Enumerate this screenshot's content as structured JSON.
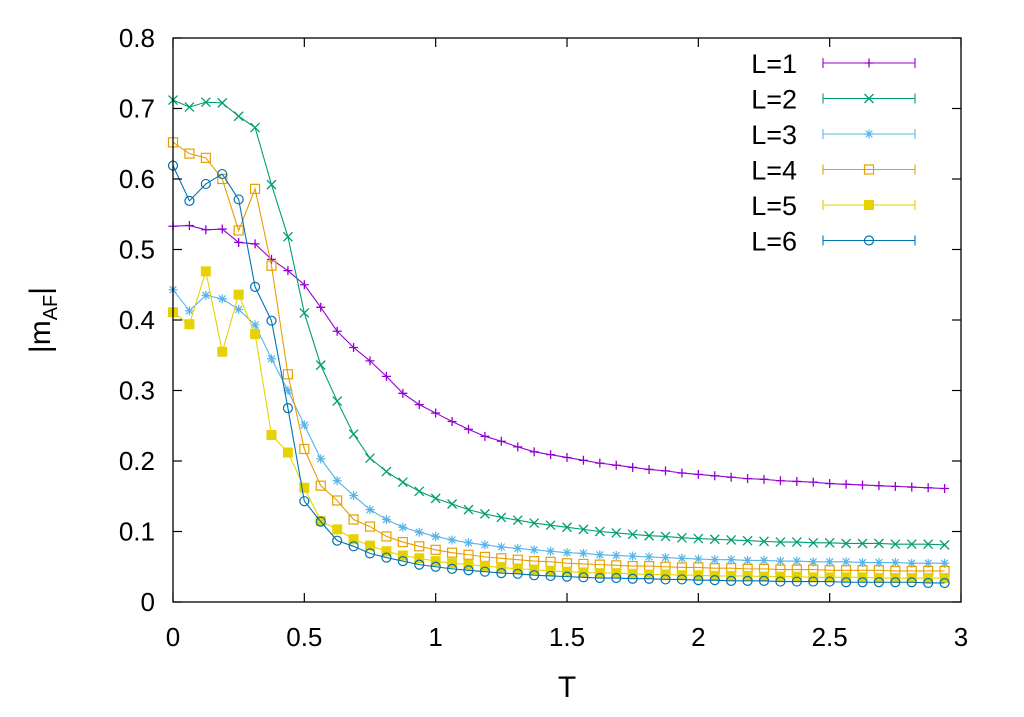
{
  "chart_data": {
    "type": "line",
    "xlabel": "T",
    "ylabel": {
      "main": "|m",
      "sub": "AF",
      "end": "|"
    },
    "xlim": [
      0,
      3
    ],
    "ylim": [
      0,
      0.8
    ],
    "xticks": [
      0,
      0.5,
      1,
      1.5,
      2,
      2.5,
      3
    ],
    "xtick_labels": [
      "0",
      "0.5",
      "1",
      "1.5",
      "2",
      "2.5",
      "3"
    ],
    "yticks": [
      0,
      0.1,
      0.2,
      0.3,
      0.4,
      0.5,
      0.6,
      0.7,
      0.8
    ],
    "ytick_labels": [
      "0",
      "0.1",
      "0.2",
      "0.3",
      "0.4",
      "0.5",
      "0.6",
      "0.7",
      "0.8"
    ],
    "grid": false,
    "legend_position": "top-right",
    "x_start": 0.0,
    "x_step": 0.0625,
    "series": [
      {
        "name": "L=1",
        "color": "#9400d3",
        "marker": "plus",
        "values": [
          0.533,
          0.534,
          0.528,
          0.529,
          0.51,
          0.508,
          0.486,
          0.47,
          0.45,
          0.418,
          0.384,
          0.361,
          0.342,
          0.32,
          0.296,
          0.28,
          0.268,
          0.256,
          0.245,
          0.235,
          0.228,
          0.22,
          0.213,
          0.209,
          0.205,
          0.201,
          0.197,
          0.194,
          0.191,
          0.188,
          0.186,
          0.183,
          0.181,
          0.179,
          0.177,
          0.175,
          0.174,
          0.172,
          0.171,
          0.17,
          0.168,
          0.167,
          0.166,
          0.165,
          0.164,
          0.163,
          0.162,
          0.161
        ]
      },
      {
        "name": "L=2",
        "color": "#009e73",
        "marker": "cross",
        "values": [
          0.712,
          0.702,
          0.709,
          0.708,
          0.689,
          0.673,
          0.592,
          0.518,
          0.41,
          0.336,
          0.285,
          0.238,
          0.204,
          0.185,
          0.17,
          0.157,
          0.147,
          0.139,
          0.131,
          0.125,
          0.12,
          0.116,
          0.112,
          0.109,
          0.106,
          0.103,
          0.1,
          0.098,
          0.096,
          0.094,
          0.093,
          0.091,
          0.09,
          0.089,
          0.088,
          0.087,
          0.086,
          0.085,
          0.085,
          0.084,
          0.084,
          0.083,
          0.083,
          0.083,
          0.082,
          0.082,
          0.082,
          0.081
        ]
      },
      {
        "name": "L=3",
        "color": "#56b4e9",
        "marker": "star",
        "values": [
          0.443,
          0.413,
          0.435,
          0.43,
          0.415,
          0.393,
          0.345,
          0.3,
          0.251,
          0.203,
          0.172,
          0.151,
          0.131,
          0.117,
          0.106,
          0.099,
          0.093,
          0.088,
          0.084,
          0.081,
          0.078,
          0.076,
          0.074,
          0.072,
          0.07,
          0.069,
          0.067,
          0.066,
          0.065,
          0.064,
          0.063,
          0.062,
          0.061,
          0.06,
          0.06,
          0.059,
          0.059,
          0.058,
          0.058,
          0.057,
          0.057,
          0.057,
          0.056,
          0.056,
          0.056,
          0.055,
          0.055,
          0.055
        ]
      },
      {
        "name": "L=4",
        "color": "#e69f00",
        "marker": "box",
        "values": [
          0.652,
          0.636,
          0.63,
          0.6,
          0.527,
          0.586,
          0.477,
          0.323,
          0.217,
          0.165,
          0.144,
          0.117,
          0.107,
          0.093,
          0.085,
          0.079,
          0.074,
          0.07,
          0.067,
          0.064,
          0.062,
          0.06,
          0.058,
          0.057,
          0.055,
          0.054,
          0.053,
          0.052,
          0.051,
          0.051,
          0.05,
          0.049,
          0.049,
          0.048,
          0.048,
          0.047,
          0.047,
          0.046,
          0.046,
          0.046,
          0.045,
          0.045,
          0.045,
          0.045,
          0.044,
          0.044,
          0.044,
          0.044
        ]
      },
      {
        "name": "L=5",
        "color": "#e6d200",
        "marker": "filled-box",
        "values": [
          0.411,
          0.394,
          0.469,
          0.355,
          0.436,
          0.38,
          0.237,
          0.212,
          0.162,
          0.115,
          0.103,
          0.089,
          0.08,
          0.072,
          0.066,
          0.062,
          0.058,
          0.055,
          0.053,
          0.051,
          0.049,
          0.047,
          0.046,
          0.044,
          0.043,
          0.042,
          0.041,
          0.041,
          0.04,
          0.039,
          0.039,
          0.038,
          0.038,
          0.037,
          0.037,
          0.037,
          0.036,
          0.036,
          0.036,
          0.035,
          0.035,
          0.035,
          0.035,
          0.034,
          0.034,
          0.034,
          0.034,
          0.034
        ]
      },
      {
        "name": "L=6",
        "color": "#0072b2",
        "marker": "circle",
        "values": [
          0.619,
          0.569,
          0.593,
          0.607,
          0.571,
          0.447,
          0.399,
          0.275,
          0.143,
          0.114,
          0.087,
          0.079,
          0.069,
          0.063,
          0.058,
          0.053,
          0.05,
          0.047,
          0.045,
          0.043,
          0.041,
          0.04,
          0.038,
          0.037,
          0.036,
          0.035,
          0.034,
          0.034,
          0.033,
          0.033,
          0.032,
          0.032,
          0.031,
          0.031,
          0.03,
          0.03,
          0.03,
          0.029,
          0.029,
          0.029,
          0.029,
          0.028,
          0.028,
          0.028,
          0.028,
          0.028,
          0.027,
          0.027
        ]
      }
    ]
  }
}
